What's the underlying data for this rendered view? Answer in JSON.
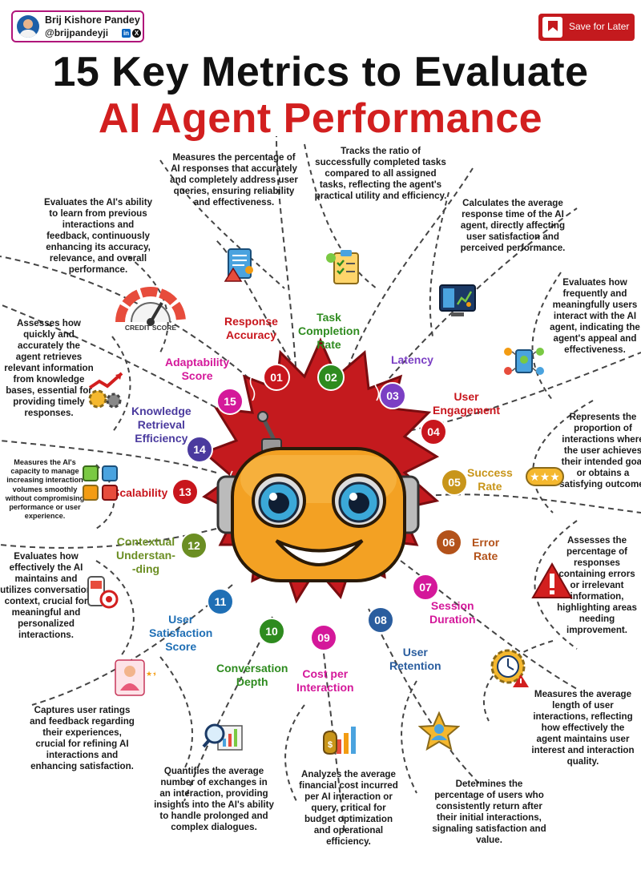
{
  "author": {
    "name": "Brij Kishore Pandey",
    "handle": "@brijpandeyji",
    "linkedin_badge": "in",
    "x_badge": "X"
  },
  "save_button": {
    "label": "Save for Later"
  },
  "title": {
    "line1": "15 Key Metrics to Evaluate",
    "line2": "AI Agent Performance"
  },
  "colors": {
    "accent_red": "#d21f1f",
    "brand_magenta": "#b0157a",
    "dark_text": "#111111"
  },
  "icons": {
    "gauge_caption": "CREDIT SCORE"
  },
  "metrics": [
    {
      "number": "01",
      "label": "Response\nAccuracy",
      "color": "#c8161d",
      "description": "Measures the percentage of AI responses that accurately and completely address user queries, ensuring reliability and effectiveness.",
      "icon": "document-warning-icon"
    },
    {
      "number": "02",
      "label": "Task\nCompletion\nRate",
      "color": "#2e8b1f",
      "description": "Tracks the ratio of successfully completed tasks compared to all assigned tasks, reflecting the agent's practical utility and efficiency.",
      "icon": "clipboard-checklist-icon"
    },
    {
      "number": "03",
      "label": "Latency",
      "color": "#7b3fc4",
      "description": "Calculates the average response time of the AI agent, directly affecting user satisfaction and perceived performance.",
      "icon": "server-dashboard-icon"
    },
    {
      "number": "04",
      "label": "User\nEngagement",
      "color": "#c8161d",
      "description": "Evaluates how frequently and meaningfully users interact with the AI agent, indicating the agent's appeal and effectiveness.",
      "icon": "user-network-icon"
    },
    {
      "number": "05",
      "label": "Success\nRate",
      "color": "#c8951a",
      "description": "Represents the proportion of interactions where the user achieves their intended goal or obtains a satisfying outcome.",
      "icon": "rating-stars-icon"
    },
    {
      "number": "06",
      "label": "Error\nRate",
      "color": "#b3521a",
      "description": "Assesses the percentage of responses containing errors or irrelevant information, highlighting areas needing improvement.",
      "icon": "warning-triangle-icon"
    },
    {
      "number": "07",
      "label": "Session\nDuration",
      "color": "#d4189a",
      "description": "Measures the average length of user interactions, reflecting how effectively the agent maintains user interest and interaction quality.",
      "icon": "gear-clock-icon"
    },
    {
      "number": "08",
      "label": "User\nRetention",
      "color": "#2a5d9e",
      "description": "Determines the percentage of users who consistently return after their initial interactions, signaling satisfaction and value.",
      "icon": "user-star-icon"
    },
    {
      "number": "09",
      "label": "Cost per\nInteraction",
      "color": "#d4189a",
      "description": "Analyzes the average financial cost incurred per AI interaction or query, critical for budget optimization and operational efficiency.",
      "icon": "money-chart-icon"
    },
    {
      "number": "10",
      "label": "Conversation\nDepth",
      "color": "#2e8b1f",
      "description": "Quantifies the average number of exchanges in an interaction, providing insights into the AI's ability to handle prolonged and complex dialogues.",
      "icon": "magnifier-chart-icon"
    },
    {
      "number": "11",
      "label": "User\nSatisfaction\nScore",
      "color": "#1f6fb5",
      "description": "Captures user ratings and feedback regarding their experiences, crucial for refining AI interactions and enhancing satisfaction.",
      "icon": "review-person-icon"
    },
    {
      "number": "12",
      "label": "Contextual\nUnderstan-\n-ding",
      "color": "#6b8e23",
      "description": "Evaluates how effectively the AI maintains and utilizes conversation context, crucial for meaningful and personalized interactions.",
      "icon": "phone-target-icon"
    },
    {
      "number": "13",
      "label": "Scalability",
      "color": "#c8161d",
      "description": "Measures the AI's capacity to manage increasing interaction volumes smoothly without compromising performance or user experience.",
      "icon": "network-puzzle-icon"
    },
    {
      "number": "14",
      "label": "Knowledge\nRetrieval\nEfficiency",
      "color": "#4a3a9e",
      "description": "Assesses how quickly and accurately the agent retrieves relevant information from knowledge bases, essential for providing timely responses.",
      "icon": "growth-gears-icon"
    },
    {
      "number": "15",
      "label": "Adaptability\nScore",
      "color": "#d4189a",
      "description": "Evaluates the AI's ability to learn from previous interactions and feedback, continuously enhancing its accuracy, relevance, and overall performance.",
      "icon": "credit-score-gauge-icon"
    }
  ]
}
